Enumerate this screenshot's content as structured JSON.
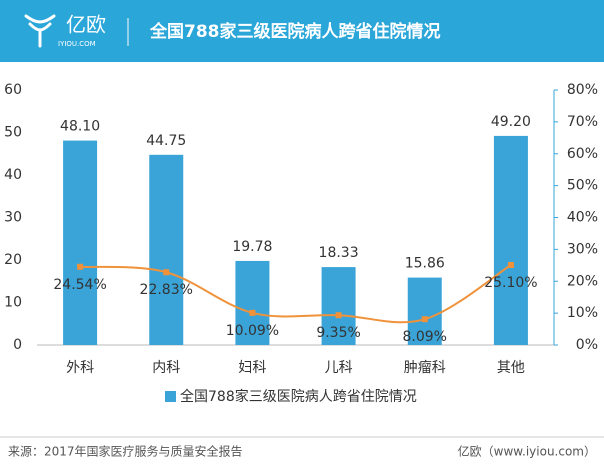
{
  "header": {
    "logo": "亿欧",
    "logo_sub": "IYIOU.COM"
  },
  "chart_data": {
    "type": "bar",
    "title": "全国788家三级医院病人跨省住院情况",
    "categories": [
      "外科",
      "内科",
      "妇科",
      "儿科",
      "肿瘤科",
      "其他"
    ],
    "series": [
      {
        "name": "全国788家三级医院病人跨省住院情况",
        "type": "bar",
        "color": "#3aa4d8",
        "values": [
          48.1,
          44.75,
          19.78,
          18.33,
          15.86,
          49.2
        ],
        "value_labels": [
          "48.10",
          "44.75",
          "19.78",
          "18.33",
          "15.86",
          "49.20"
        ]
      },
      {
        "type": "line",
        "axis": "y2",
        "color": "#f0923a",
        "values": [
          24.54,
          22.83,
          10.09,
          9.35,
          8.09,
          25.1
        ],
        "value_labels": [
          "24.54%",
          "22.83%",
          "10.09%",
          "9.35%",
          "8.09%",
          "25.10%"
        ]
      }
    ],
    "ylim": [
      0,
      60
    ],
    "yticks": [
      0,
      10,
      20,
      30,
      40,
      50,
      60
    ],
    "y2lim": [
      0,
      80
    ],
    "y2ticks": [
      {
        "value": 0,
        "label": "0%"
      },
      {
        "value": 10,
        "label": "10%"
      },
      {
        "value": 20,
        "label": "20%"
      },
      {
        "value": 30,
        "label": "30%"
      },
      {
        "value": 40,
        "label": "40%"
      },
      {
        "value": 50,
        "label": "50%"
      },
      {
        "value": 60,
        "label": "60%"
      },
      {
        "value": 70,
        "label": "70%"
      },
      {
        "value": 80,
        "label": "80%"
      }
    ],
    "legend": "bottom"
  },
  "footer": {
    "source": "来源：2017年国家医疗服务与质量安全报告",
    "site": "亿欧（www.iyiou.com）"
  }
}
